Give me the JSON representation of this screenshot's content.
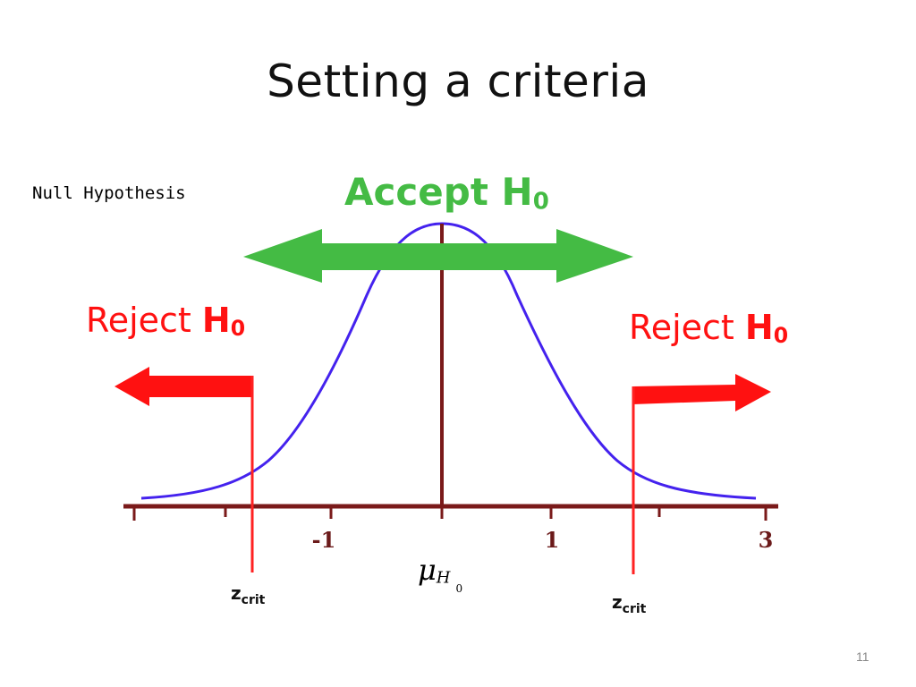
{
  "slide": {
    "title": "Setting a criteria",
    "page_number": "11"
  },
  "labels": {
    "null_hypothesis": "Null  Hypothesis",
    "accept_prefix": "Accept H",
    "accept_sub": "0",
    "reject_word": "Reject",
    "reject_h": "H",
    "reject_sub": "0",
    "zcrit_z": "z",
    "zcrit_sub": "crit",
    "mu_symbol": "μ",
    "mu_h": "H",
    "mu_zero": "0"
  },
  "axis": {
    "tick_labels": [
      "-1",
      "1",
      "3"
    ]
  },
  "colors": {
    "title": "#111111",
    "accept": "#44bb44",
    "reject": "#ff1111",
    "curve": "#4422ee",
    "axis": "#7a1a1a",
    "zcrit_line": "#ff2222"
  }
}
